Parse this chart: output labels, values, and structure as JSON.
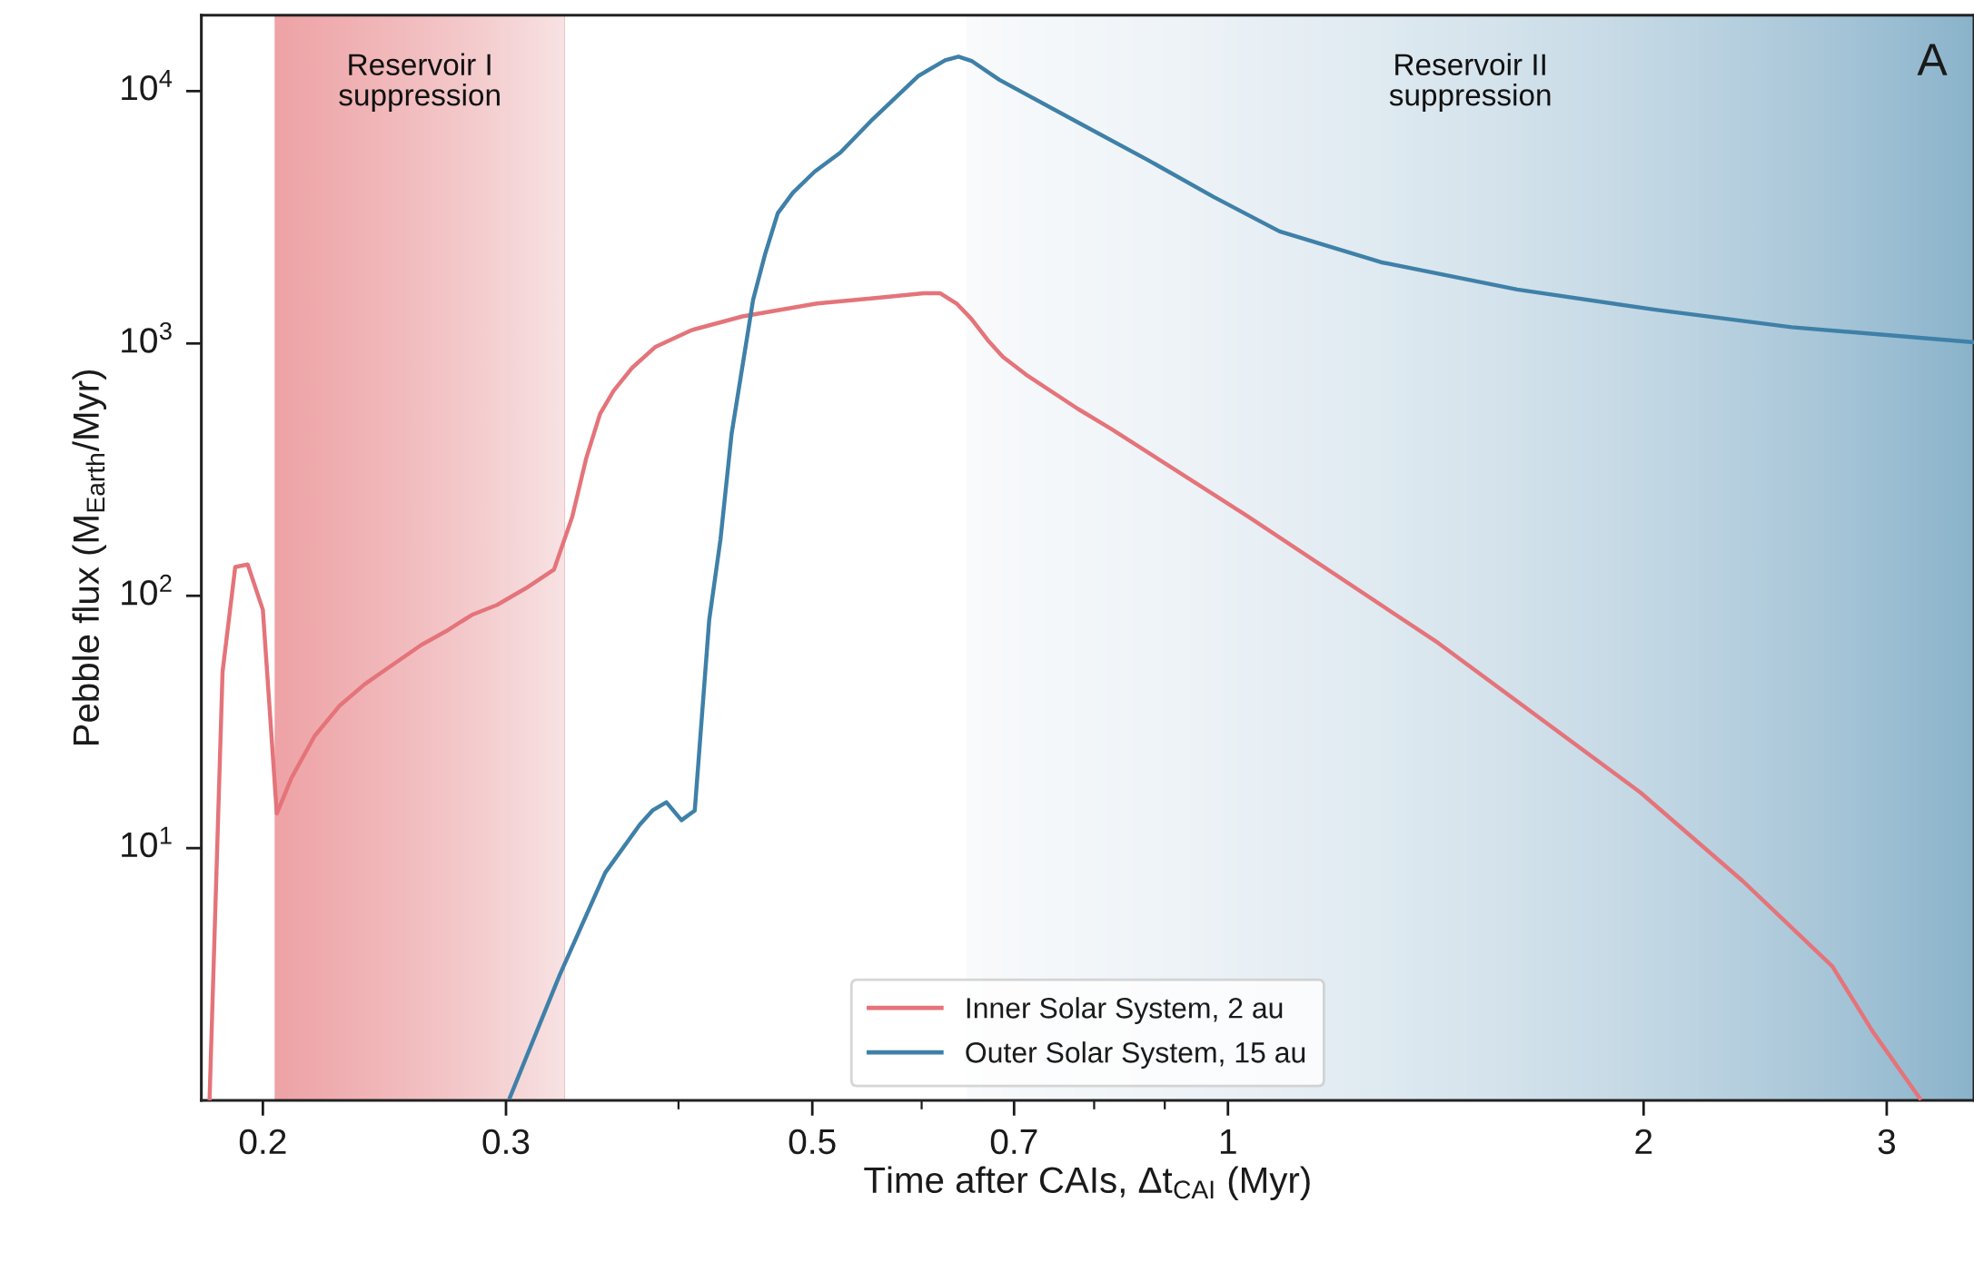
{
  "chart_data": {
    "type": "line",
    "xlabel": "Time after CAIs, Δt$_{CAI}$ (Myr)",
    "ylabel": "Pebble flux (M$_{Earth}$/Myr)",
    "log": "xy",
    "grid": false,
    "legend": "bottom",
    "line_style": "solid",
    "marker": "none",
    "xlim": [
      0.1805,
      3.47
    ],
    "ylim": [
      1,
      20000
    ],
    "xticks": [
      0.2,
      0.3,
      {
        "value": 0.4,
        "label": null
      },
      0.5,
      {
        "value": 0.6,
        "label": null
      },
      0.7,
      {
        "value": 0.8,
        "label": null
      },
      {
        "value": 0.9,
        "label": null
      },
      1,
      2,
      3
    ],
    "yticks": [
      {
        "value": 10,
        "label": "10$^{1}$"
      },
      {
        "value": 100,
        "label": "10$^{2}$"
      },
      {
        "value": 1000,
        "label": "10$^{3}$"
      },
      {
        "value": 10000,
        "label": "10$^{4}$"
      }
    ],
    "bands": [
      {
        "axis": "x",
        "from": 0.204,
        "to": 0.331,
        "label": "Reservoir I\nsuppression",
        "color": [
          "#eea3a6",
          "#f8e3e4"
        ]
      },
      {
        "axis": "x",
        "from": 0.647,
        "to": 3.47,
        "label": "Reservoir II\nsuppression",
        "color": [
          "#f8fafc",
          "#8ab3cb"
        ]
      }
    ],
    "annotations": [
      "A"
    ],
    "series": [
      {
        "name": "Inner Solar System, 2 au",
        "color": "#e4747a",
        "x": [
          0.183,
          0.187,
          0.191,
          0.195,
          0.2,
          0.2047,
          0.2098,
          0.218,
          0.2272,
          0.237,
          0.2472,
          0.2604,
          0.2716,
          0.2834,
          0.2956,
          0.31,
          0.325,
          0.335,
          0.343,
          0.351,
          0.359,
          0.37,
          0.385,
          0.409,
          0.445,
          0.504,
          0.56,
          0.602,
          0.619,
          0.636,
          0.652,
          0.67,
          0.687,
          0.714,
          0.778,
          0.824,
          1.034,
          1.42,
          1.99,
          2.36,
          2.74,
          2.93,
          3.17
        ],
        "values": [
          1.02,
          50,
          130,
          133,
          88,
          13.7,
          19,
          27.8,
          36.6,
          44.6,
          52.4,
          63.8,
          72.5,
          84,
          92,
          107,
          127,
          205,
          352,
          527,
          649,
          798,
          970,
          1130,
          1280,
          1440,
          1520,
          1580,
          1580,
          1440,
          1250,
          1030,
          886,
          753,
          552,
          457,
          206,
          65,
          16.6,
          7.4,
          3.4,
          1.88,
          1.02
        ]
      },
      {
        "name": "Outer Solar System, 15 au",
        "color": "#3f80a8",
        "x": [
          0.302,
          0.328,
          0.354,
          0.375,
          0.383,
          0.392,
          0.402,
          0.411,
          0.421,
          0.429,
          0.437,
          0.453,
          0.462,
          0.472,
          0.484,
          0.502,
          0.524,
          0.553,
          0.597,
          0.624,
          0.638,
          0.652,
          0.683,
          0.778,
          0.874,
          0.977,
          1.09,
          1.29,
          1.62,
          2.04,
          2.56,
          3.47
        ],
        "values": [
          1.03,
          3.13,
          8.0,
          12.4,
          14.1,
          15.2,
          12.9,
          14.1,
          80,
          167,
          437,
          1490,
          2244,
          3281,
          3954,
          4797,
          5710,
          7740,
          11500,
          13250,
          13700,
          13180,
          11090,
          7540,
          5350,
          3800,
          2780,
          2100,
          1636,
          1360,
          1160,
          1010
        ]
      }
    ]
  }
}
